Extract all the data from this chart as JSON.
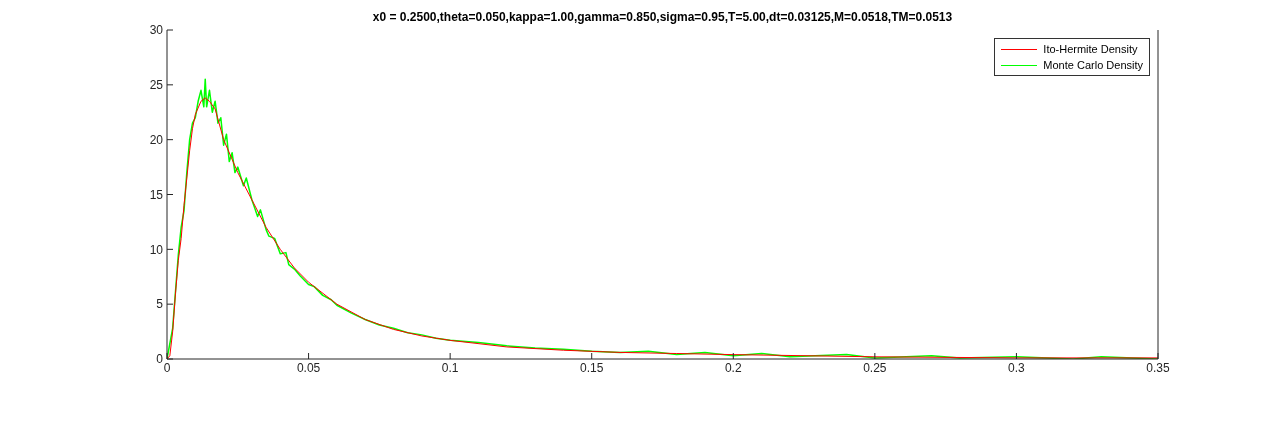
{
  "chart_data": {
    "type": "line",
    "title": "x0 = 0.2500,theta=0.050,kappa=1.00,gamma=0.850,sigma=0.95,T=5.00,dt=0.03125,M=0.0518,TM=0.0513",
    "xlim": [
      0,
      0.35
    ],
    "xticks": [
      0,
      0.05,
      0.1,
      0.15,
      0.2,
      0.25,
      0.3,
      0.35
    ],
    "ylim": [
      0,
      30
    ],
    "yticks": [
      0,
      5,
      10,
      15,
      20,
      25,
      30
    ],
    "grid": false,
    "legend": "top right",
    "marker": "none",
    "line_style": "solid",
    "series": [
      {
        "name": "Ito-Hermite Density",
        "color": "#ff0000",
        "x": [
          0,
          0.001,
          0.002,
          0.003,
          0.004,
          0.005,
          0.006,
          0.007,
          0.008,
          0.009,
          0.01,
          0.012,
          0.0135,
          0.015,
          0.017,
          0.02,
          0.025,
          0.03,
          0.035,
          0.04,
          0.045,
          0.05,
          0.06,
          0.07,
          0.08,
          0.09,
          0.1,
          0.12,
          0.14,
          0.16,
          0.18,
          0.2,
          0.25,
          0.3,
          0.35
        ],
        "values": [
          0,
          0.3,
          2.5,
          6,
          9,
          11,
          14,
          16.5,
          19,
          21,
          22.3,
          23.5,
          23.8,
          23.5,
          22.8,
          20,
          17,
          14.5,
          12,
          10,
          8.3,
          7,
          5,
          3.6,
          2.7,
          2.1,
          1.7,
          1.1,
          0.8,
          0.6,
          0.5,
          0.4,
          0.2,
          0.1,
          0.1
        ]
      },
      {
        "name": "Monte Carlo Density",
        "color": "#00ff00",
        "x": [
          0,
          0.002,
          0.004,
          0.005,
          0.006,
          0.007,
          0.008,
          0.009,
          0.01,
          0.011,
          0.012,
          0.013,
          0.0135,
          0.014,
          0.015,
          0.016,
          0.017,
          0.018,
          0.019,
          0.02,
          0.021,
          0.022,
          0.023,
          0.024,
          0.025,
          0.027,
          0.028,
          0.03,
          0.032,
          0.033,
          0.035,
          0.036,
          0.038,
          0.04,
          0.042,
          0.043,
          0.045,
          0.047,
          0.05,
          0.052,
          0.055,
          0.058,
          0.06,
          0.065,
          0.07,
          0.075,
          0.08,
          0.085,
          0.09,
          0.095,
          0.1,
          0.11,
          0.12,
          0.13,
          0.14,
          0.15,
          0.16,
          0.17,
          0.18,
          0.19,
          0.2,
          0.21,
          0.22,
          0.24,
          0.25,
          0.27,
          0.28,
          0.3,
          0.32,
          0.33,
          0.35
        ],
        "values": [
          0,
          2.8,
          9.5,
          12,
          13.5,
          17,
          20,
          21.5,
          22,
          23.5,
          24.5,
          23,
          25.5,
          23,
          24.5,
          22.5,
          23.5,
          21.5,
          22,
          19.5,
          20.5,
          18,
          18.8,
          17,
          17.5,
          15.8,
          16.5,
          14.5,
          13,
          13.6,
          11.8,
          11.2,
          11,
          9.6,
          9.7,
          8.6,
          8.2,
          7.6,
          6.8,
          6.6,
          5.8,
          5.4,
          4.9,
          4.2,
          3.6,
          3.1,
          2.8,
          2.4,
          2.2,
          1.9,
          1.7,
          1.5,
          1.2,
          1,
          0.9,
          0.7,
          0.6,
          0.7,
          0.4,
          0.6,
          0.3,
          0.5,
          0.2,
          0.4,
          0.1,
          0.3,
          0.1,
          0.2,
          0,
          0.2,
          0
        ]
      }
    ]
  }
}
